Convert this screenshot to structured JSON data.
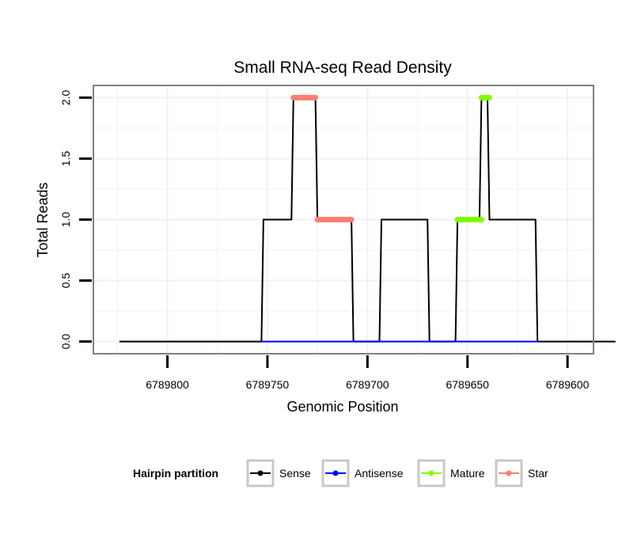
{
  "chart_data": {
    "type": "line",
    "title": "Small RNA-seq Read Density",
    "xlabel": "Genomic Position",
    "ylabel": "Total Reads",
    "x_reversed": true,
    "xlim": [
      6789837,
      6789587
    ],
    "ylim": [
      -0.1,
      2.1
    ],
    "x_ticks": [
      6789800,
      6789750,
      6789700,
      6789650,
      6789600
    ],
    "x_tick_labels": [
      "6789800",
      "6789750",
      "6789700",
      "6789650",
      "6789600"
    ],
    "y_ticks": [
      0,
      0.5,
      1,
      1.5,
      2
    ],
    "y_tick_labels": [
      "0.0",
      "0.5",
      "1.0",
      "1.5",
      "2.0"
    ],
    "grid": true,
    "legend_position": "bottom",
    "legend": {
      "title": "Hairpin partition",
      "entries": [
        {
          "label": "Sense",
          "color": "#000000"
        },
        {
          "label": "Antisense",
          "color": "#0000ff"
        },
        {
          "label": "Mature",
          "color": "#7fff00"
        },
        {
          "label": "Star",
          "color": "#fa8072"
        }
      ]
    },
    "series": [
      {
        "name": "Sense",
        "color": "#000000",
        "x": [
          6789824,
          6789753,
          6789752,
          6789738,
          6789737,
          6789735,
          6789734,
          6789726,
          6789725,
          6789708,
          6789707,
          6789694,
          6789693,
          6789670,
          6789669,
          6789656,
          6789655,
          6789644,
          6789643,
          6789640,
          6789639,
          6789630,
          6789629,
          6789616,
          6789615,
          6789576
        ],
        "values": [
          0,
          0,
          1,
          1,
          2,
          2,
          2,
          2,
          1,
          1,
          0,
          0,
          1,
          1,
          0,
          0,
          1,
          1,
          2,
          2,
          1,
          1,
          1,
          1,
          0,
          0
        ]
      },
      {
        "name": "Antisense",
        "color": "#0000ff",
        "x": [
          6789753,
          6789615
        ],
        "values": [
          0,
          0
        ]
      },
      {
        "name": "Mature",
        "color": "#7fff00",
        "segments": [
          {
            "x": [
              6789655,
              6789643
            ],
            "values": [
              1,
              1
            ]
          },
          {
            "x": [
              6789643,
              6789639
            ],
            "values": [
              2,
              2
            ]
          }
        ]
      },
      {
        "name": "Star",
        "color": "#fa8072",
        "segments": [
          {
            "x": [
              6789737,
              6789726
            ],
            "values": [
              2,
              2
            ]
          },
          {
            "x": [
              6789725,
              6789708
            ],
            "values": [
              1,
              1
            ]
          }
        ]
      }
    ]
  }
}
